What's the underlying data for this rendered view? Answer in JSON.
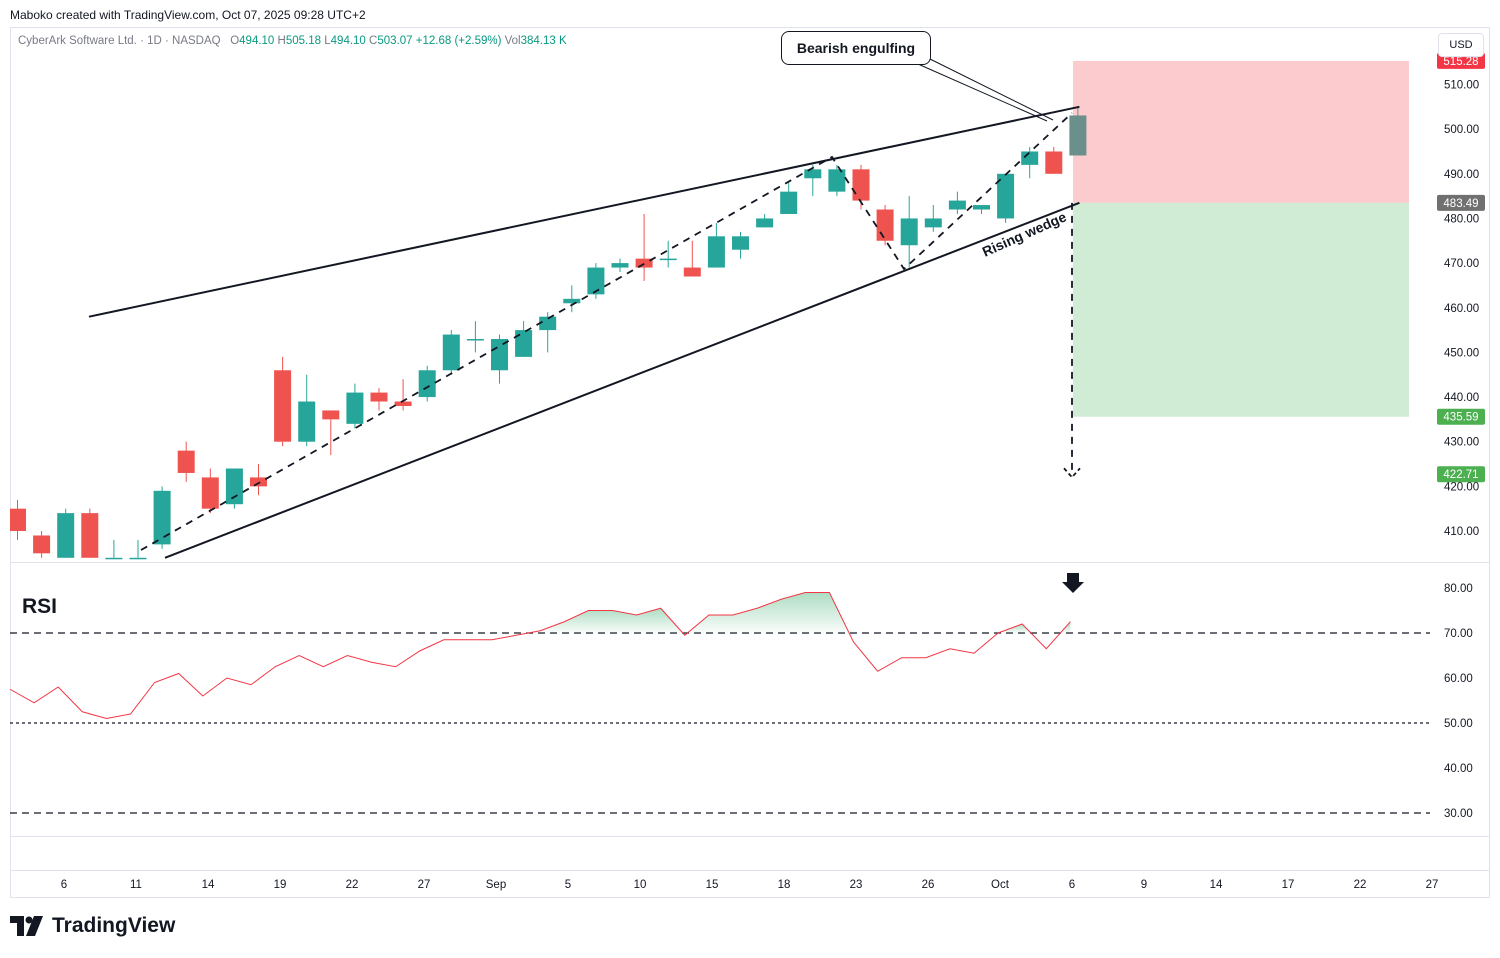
{
  "header": {
    "credit": "Maboko created with TradingView.com, Oct 07, 2025 09:28 UTC+2",
    "symbol": "CyberArk Software Ltd. · 1D · NASDAQ",
    "o_label": "O",
    "o_value": "494.10",
    "h_label": "H",
    "h_value": "505.18",
    "l_label": "L",
    "l_value": "494.10",
    "c_label": "C",
    "c_value": "503.07",
    "change": "+12.68 (+2.59%)",
    "vol_label": "Vol",
    "vol_value": "384.13 K",
    "currency": "USD"
  },
  "brand": {
    "name": "TradingView"
  },
  "annotations": {
    "bearish_engulfing": "Bearish engulfing",
    "rising_wedge": "Rising wedge",
    "rsi_label": "RSI"
  },
  "colors": {
    "up": "#26a69a",
    "down": "#ef5350",
    "last": "#6b8f8b",
    "stop_zone": "#fccbcd",
    "target_zone": "#d1ecd5",
    "rsi_line": "#f23645",
    "rsi_fill": "#9ed6b7",
    "stop_tag": "#f23645",
    "entry_tag": "#707070",
    "target_tag": "#4caf50"
  },
  "chart_data": [
    {
      "type": "candlestick",
      "title": "CyberArk Software Ltd. · 1D · NASDAQ",
      "y_ticks": [
        410,
        420,
        430,
        440,
        450,
        460,
        470,
        480,
        490,
        500,
        510
      ],
      "ylim": [
        404,
        521
      ],
      "x_tick_labels": [
        "6",
        "11",
        "14",
        "19",
        "22",
        "27",
        "Sep",
        "5",
        "10",
        "15",
        "18",
        "23",
        "26",
        "Oct",
        "6",
        "9",
        "14",
        "17",
        "22",
        "27"
      ],
      "candles": [
        {
          "o": 415,
          "h": 417,
          "l": 408,
          "c": 410
        },
        {
          "o": 409,
          "h": 410,
          "l": 404,
          "c": 405
        },
        {
          "o": 404,
          "h": 415,
          "l": 404,
          "c": 414
        },
        {
          "o": 414,
          "h": 415,
          "l": 404,
          "c": 404
        },
        {
          "o": 404,
          "h": 408,
          "l": 404,
          "c": 404
        },
        {
          "o": 404,
          "h": 408,
          "l": 404,
          "c": 404
        },
        {
          "o": 407,
          "h": 420,
          "l": 406,
          "c": 419
        },
        {
          "o": 428,
          "h": 430,
          "l": 421,
          "c": 423
        },
        {
          "o": 422,
          "h": 424,
          "l": 414,
          "c": 415
        },
        {
          "o": 416,
          "h": 424,
          "l": 415,
          "c": 424
        },
        {
          "o": 422,
          "h": 425,
          "l": 418,
          "c": 420
        },
        {
          "o": 446,
          "h": 449,
          "l": 429,
          "c": 430
        },
        {
          "o": 430,
          "h": 445,
          "l": 429,
          "c": 439
        },
        {
          "o": 437,
          "h": 437,
          "l": 427,
          "c": 435
        },
        {
          "o": 434,
          "h": 443,
          "l": 433,
          "c": 441
        },
        {
          "o": 441,
          "h": 442,
          "l": 437,
          "c": 439
        },
        {
          "o": 439,
          "h": 444,
          "l": 437,
          "c": 438
        },
        {
          "o": 440,
          "h": 447,
          "l": 439,
          "c": 446
        },
        {
          "o": 446,
          "h": 455,
          "l": 445,
          "c": 454
        },
        {
          "o": 453,
          "h": 457,
          "l": 450,
          "c": 453
        },
        {
          "o": 446,
          "h": 454,
          "l": 443,
          "c": 453
        },
        {
          "o": 449,
          "h": 457,
          "l": 449,
          "c": 455
        },
        {
          "o": 455,
          "h": 459,
          "l": 450,
          "c": 458
        },
        {
          "o": 461,
          "h": 465,
          "l": 459,
          "c": 462
        },
        {
          "o": 463,
          "h": 470,
          "l": 462,
          "c": 469
        },
        {
          "o": 469,
          "h": 471,
          "l": 468,
          "c": 470
        },
        {
          "o": 471,
          "h": 481,
          "l": 466,
          "c": 469
        },
        {
          "o": 471,
          "h": 475,
          "l": 469,
          "c": 471
        },
        {
          "o": 469,
          "h": 475,
          "l": 467,
          "c": 467
        },
        {
          "o": 469,
          "h": 479,
          "l": 469,
          "c": 476
        },
        {
          "o": 473,
          "h": 477,
          "l": 471,
          "c": 476
        },
        {
          "o": 478,
          "h": 481,
          "l": 478,
          "c": 480
        },
        {
          "o": 481,
          "h": 488,
          "l": 481,
          "c": 486
        },
        {
          "o": 489,
          "h": 492,
          "l": 485,
          "c": 491
        },
        {
          "o": 486,
          "h": 492,
          "l": 485,
          "c": 491
        },
        {
          "o": 491,
          "h": 492,
          "l": 482,
          "c": 484
        },
        {
          "o": 482,
          "h": 483,
          "l": 474,
          "c": 475
        },
        {
          "o": 474,
          "h": 485,
          "l": 469,
          "c": 480
        },
        {
          "o": 478,
          "h": 483,
          "l": 477,
          "c": 480
        },
        {
          "o": 482,
          "h": 486,
          "l": 481,
          "c": 484
        },
        {
          "o": 482,
          "h": 483,
          "l": 481,
          "c": 483
        },
        {
          "o": 480,
          "h": 490,
          "l": 479,
          "c": 490
        },
        {
          "o": 492,
          "h": 496,
          "l": 489,
          "c": 495
        },
        {
          "o": 495,
          "h": 496,
          "l": 490,
          "c": 490
        },
        {
          "o": 494.1,
          "h": 505.18,
          "l": 494.1,
          "c": 503.07
        }
      ],
      "wedge": {
        "upper": [
          [
            1,
            458
          ],
          [
            44,
            505
          ]
        ],
        "lower": [
          [
            5,
            404
          ],
          [
            44,
            483.49
          ]
        ]
      },
      "zones": {
        "stop": 515.28,
        "entry": 483.49,
        "target": 435.59,
        "projection": 422.71
      },
      "price_tags": [
        "515.28",
        "483.49",
        "435.59",
        "422.71"
      ]
    },
    {
      "type": "line",
      "title": "RSI",
      "y_ticks": [
        30,
        40,
        50,
        60,
        70,
        80
      ],
      "ylim": [
        25,
        85
      ],
      "levels": [
        30,
        50,
        70
      ],
      "series": [
        {
          "values": [
            57.5,
            54.5,
            58,
            52.5,
            51,
            52,
            59,
            61,
            56,
            60,
            58.5,
            62.5,
            65,
            62.5,
            65,
            63.5,
            62.5,
            66,
            68.5,
            68.5,
            68.5,
            69.5,
            70.5,
            72.5,
            75,
            75,
            74,
            75.5,
            69.5,
            74,
            74,
            75.5,
            77.5,
            79,
            79,
            68,
            61.5,
            64.5,
            64.5,
            66.5,
            65.5,
            70,
            72,
            66.5,
            72.5
          ]
        }
      ]
    }
  ]
}
